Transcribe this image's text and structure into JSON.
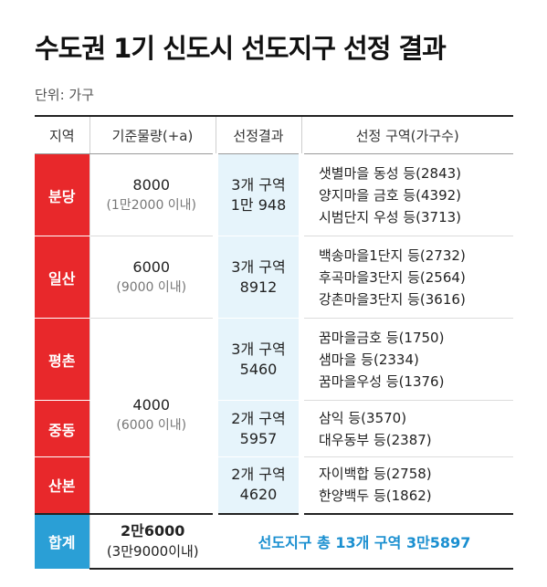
{
  "title": "수도권 1기 신도시 선도지구 선정 결과",
  "unit": "단위: 가구",
  "headers": [
    "지역",
    "기준물량(+a)",
    "선정결과",
    "선정 구역(가구수)"
  ],
  "rows": [
    {
      "region": "분당",
      "supply": "8000",
      "supply_note": "(1만2000 이내)",
      "result_zones": "3개 구역",
      "result_households": "1만 948",
      "zones": [
        "샛별마을 동성 등(2843)",
        "양지마을 금호 등(4392)",
        "시범단지 우성 등(3713)"
      ]
    },
    {
      "region": "일산",
      "supply": "6000",
      "supply_note": "(9000 이내)",
      "result_zones": "3개 구역",
      "result_households": "8912",
      "zones": [
        "백송마을1단지 등(2732)",
        "후곡마을3단지 등(2564)",
        "강촌마을3단지 등(3616)"
      ]
    },
    {
      "region": "평촌",
      "result_zones": "3개 구역",
      "result_households": "5460",
      "zones": [
        "꿈마을금호 등(1750)",
        "샘마을 등(2334)",
        "꿈마을우성 등(1376)"
      ]
    },
    {
      "region": "중동",
      "result_zones": "2개 구역",
      "result_households": "5957",
      "zones": [
        "삼익 등(3570)",
        "대우동부 등(2387)"
      ]
    },
    {
      "region": "산본",
      "result_zones": "2개 구역",
      "result_households": "4620",
      "zones": [
        "자이백합 등(2758)",
        "한양백두 등(1862)"
      ]
    }
  ],
  "shared_supply": {
    "supply": "4000",
    "supply_note": "(6000 이내)"
  },
  "total": {
    "label": "합계",
    "supply": "2만6000",
    "supply_note": "(3만9000이내)",
    "summary": "선도지구 총 13개 구역 3만5897"
  },
  "colors": {
    "region_bg": "#e8282b",
    "total_bg": "#2a9fd6",
    "result_bg": "#e6f4fb",
    "summary_text": "#1a8fd0"
  }
}
